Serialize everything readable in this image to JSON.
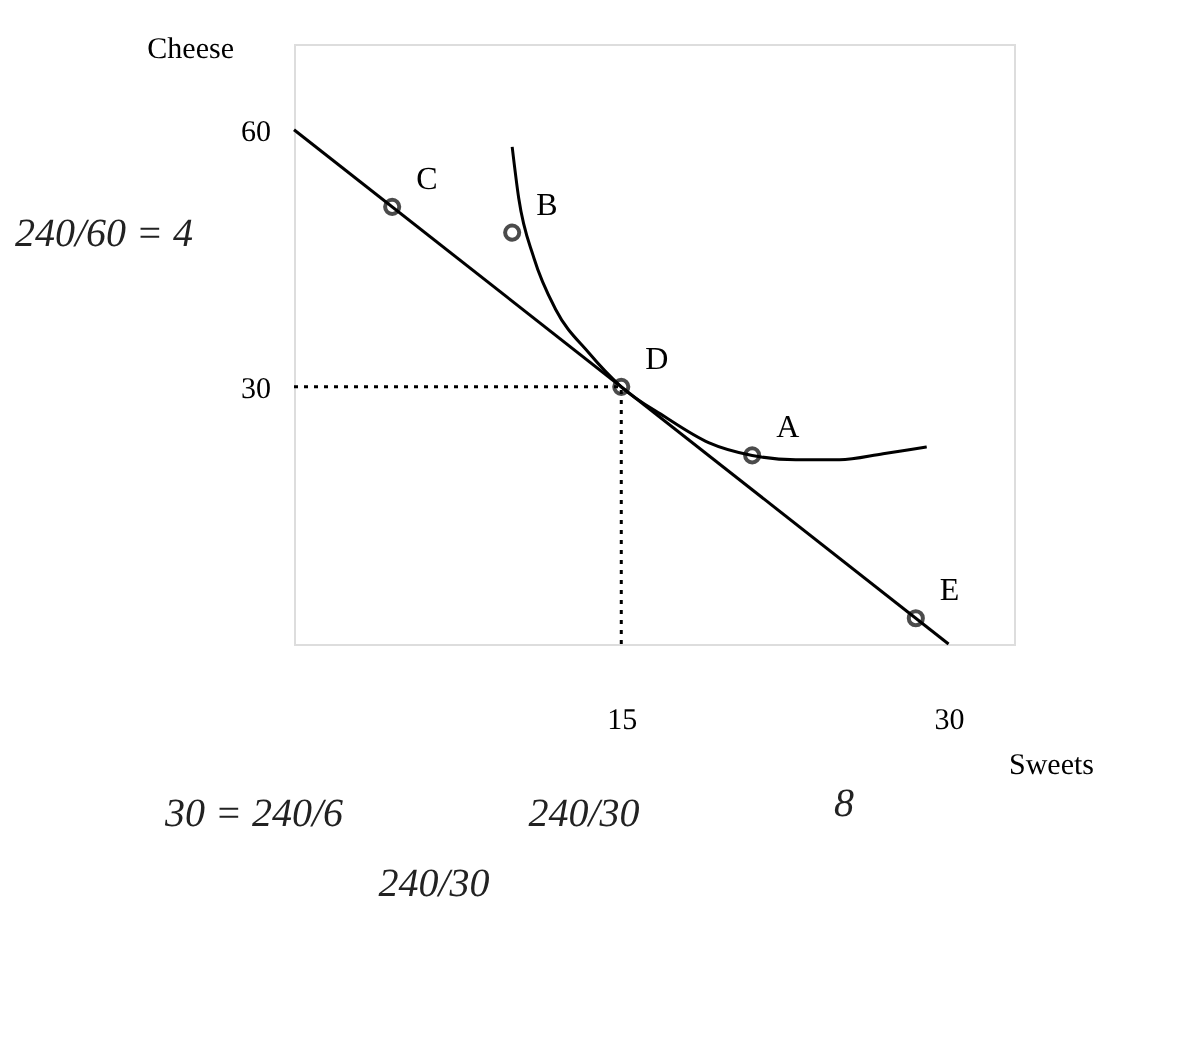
{
  "chart_data": {
    "type": "line",
    "xlabel": "Sweets",
    "ylabel": "Cheese",
    "xlim": [
      0,
      33
    ],
    "ylim": [
      0,
      70
    ],
    "xticks": [
      15,
      30
    ],
    "yticks": [
      30,
      60
    ],
    "grid": false,
    "series": [
      {
        "color": "#000000",
        "x": [
          0,
          30
        ],
        "values": [
          60,
          0
        ],
        "line_style": "solid",
        "marker": "none"
      },
      {
        "color": "#000000",
        "x": [
          10,
          10.3,
          11,
          12,
          13.5,
          15,
          17,
          19,
          21,
          23,
          25,
          27,
          29
        ],
        "values": [
          58,
          52,
          45,
          39,
          34,
          30,
          26.5,
          23.5,
          22,
          21.5,
          21.5,
          22.2,
          23
        ],
        "line_style": "solid",
        "marker": "none"
      },
      {
        "color": "#000000",
        "x": [
          0,
          15
        ],
        "values": [
          30,
          30
        ],
        "line_style": "dotted",
        "marker": "none"
      },
      {
        "color": "#000000",
        "x": [
          15,
          15
        ],
        "values": [
          0,
          30
        ],
        "line_style": "dotted",
        "marker": "none"
      },
      {
        "type": "scatter",
        "color": "#000000",
        "x": [
          4.5,
          10,
          15,
          21,
          28.5
        ],
        "values": [
          51,
          48,
          30,
          22,
          3
        ],
        "marker": "circle"
      }
    ],
    "annotations": [
      {
        "text": "C",
        "x": 4.5,
        "y": 51
      },
      {
        "text": "B",
        "x": 10,
        "y": 48
      },
      {
        "text": "D",
        "x": 15,
        "y": 30
      },
      {
        "text": "A",
        "x": 21,
        "y": 22
      },
      {
        "text": "E",
        "x": 28.5,
        "y": 3
      },
      "240/60 = 4",
      "30 = 240/6",
      "240/30",
      "240/30",
      "8"
    ]
  }
}
